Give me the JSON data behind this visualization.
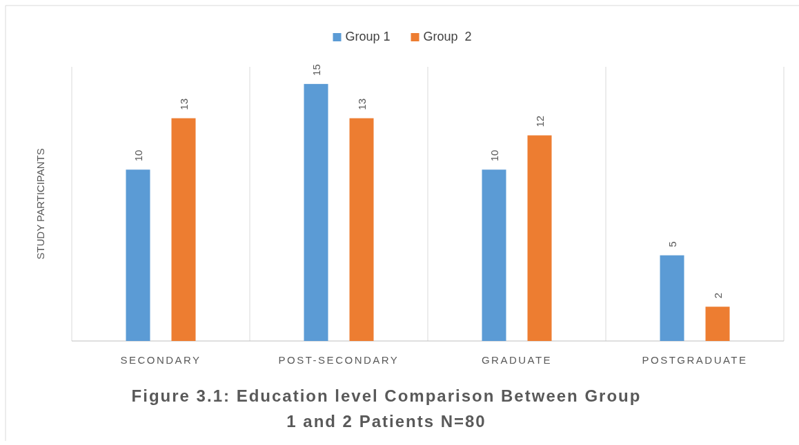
{
  "chart_data": {
    "type": "bar",
    "title": "Figure 3.1: Education level Comparison Between Group 1 and 2 Patients N=80",
    "ylabel": "STUDY PARTICIPANTS",
    "categories": [
      "SECONDARY",
      "POST-SECONDARY",
      "GRADUATE",
      "POSTGRADUATE"
    ],
    "series": [
      {
        "name": "Group 1",
        "color": "#5b9bd5",
        "values": [
          10,
          15,
          10,
          5
        ]
      },
      {
        "name": "Group  2",
        "color": "#ed7d31",
        "values": [
          13,
          13,
          12,
          2
        ]
      }
    ],
    "ylim": [
      0,
      16
    ],
    "tick_labels": "x",
    "data_labels": true,
    "legend": "top",
    "grid": "x"
  }
}
